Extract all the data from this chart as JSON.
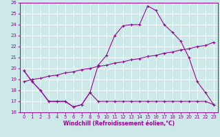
{
  "xlabel": "Windchill (Refroidissement éolien,°C)",
  "bg_color": "#cce8e8",
  "line_color": "#990099",
  "grid_color": "#ffffff",
  "xlim": [
    -0.5,
    23.5
  ],
  "ylim": [
    16,
    26
  ],
  "yticks": [
    16,
    17,
    18,
    19,
    20,
    21,
    22,
    23,
    24,
    25,
    26
  ],
  "xticks": [
    0,
    1,
    2,
    3,
    4,
    5,
    6,
    7,
    8,
    9,
    10,
    11,
    12,
    13,
    14,
    15,
    16,
    17,
    18,
    19,
    20,
    21,
    22,
    23
  ],
  "line1_x": [
    0,
    1,
    2,
    3,
    4,
    5,
    6,
    7,
    8,
    9,
    10,
    11,
    12,
    13,
    14,
    15,
    16,
    17,
    18,
    19,
    20,
    21,
    22,
    23
  ],
  "line1_y": [
    19.8,
    18.8,
    18.0,
    17.0,
    17.0,
    17.0,
    16.5,
    16.7,
    17.8,
    17.0,
    17.0,
    17.0,
    17.0,
    17.0,
    17.0,
    17.0,
    17.0,
    17.0,
    17.0,
    17.0,
    17.0,
    17.0,
    17.0,
    16.7
  ],
  "line2_x": [
    0,
    1,
    2,
    3,
    4,
    5,
    6,
    7,
    8,
    9,
    10,
    11,
    12,
    13,
    14,
    15,
    16,
    17,
    18,
    19,
    20,
    21,
    22,
    23
  ],
  "line2_y": [
    18.8,
    19.0,
    19.1,
    19.3,
    19.4,
    19.6,
    19.7,
    19.9,
    20.0,
    20.2,
    20.3,
    20.5,
    20.6,
    20.8,
    20.9,
    21.1,
    21.2,
    21.4,
    21.5,
    21.7,
    21.8,
    22.0,
    22.1,
    22.4
  ],
  "line3_x": [
    0,
    1,
    2,
    3,
    4,
    5,
    6,
    7,
    8,
    9,
    10,
    11,
    12,
    13,
    14,
    15,
    16,
    17,
    18,
    19,
    20,
    21,
    22,
    23
  ],
  "line3_y": [
    19.8,
    18.8,
    18.0,
    17.0,
    17.0,
    17.0,
    16.5,
    16.7,
    17.8,
    20.3,
    21.2,
    23.0,
    23.9,
    24.0,
    24.0,
    25.7,
    25.3,
    24.0,
    23.3,
    22.5,
    21.0,
    18.8,
    17.8,
    16.7
  ]
}
